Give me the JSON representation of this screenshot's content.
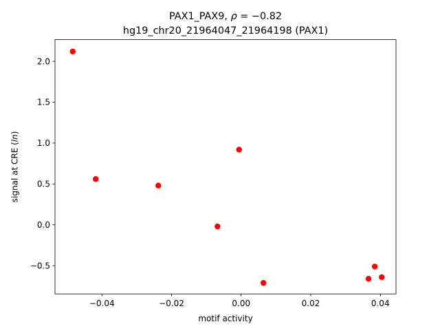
{
  "chart_data": {
    "type": "scatter",
    "title_line1": "PAX1_PAX9, ρ = −0.82",
    "title_line1_prefix": "PAX1_PAX9, ",
    "title_line1_rho": "ρ",
    "title_line1_suffix": " = −0.82",
    "title_line2": "hg19_chr20_21964047_21964198 (PAX1)",
    "xlabel": "motif activity",
    "ylabel_prefix": "signal at CRE (",
    "ylabel_italic": "ln",
    "ylabel_suffix": ")",
    "xlim": [
      -0.0535,
      0.0445
    ],
    "ylim": [
      -0.845,
      2.265
    ],
    "x_ticks": [
      {
        "value": -0.04,
        "label": "−0.04"
      },
      {
        "value": -0.02,
        "label": "−0.02"
      },
      {
        "value": 0.0,
        "label": "0.00"
      },
      {
        "value": 0.02,
        "label": "0.02"
      },
      {
        "value": 0.04,
        "label": "0.04"
      }
    ],
    "y_ticks": [
      {
        "value": -0.5,
        "label": "−0.5"
      },
      {
        "value": 0.0,
        "label": "0.0"
      },
      {
        "value": 0.5,
        "label": "0.5"
      },
      {
        "value": 1.0,
        "label": "1.0"
      },
      {
        "value": 1.5,
        "label": "1.5"
      },
      {
        "value": 2.0,
        "label": "2.0"
      }
    ],
    "series": [
      {
        "color": "#ff0000",
        "points": [
          {
            "x": -0.0484,
            "y": 2.12
          },
          {
            "x": -0.0418,
            "y": 0.56
          },
          {
            "x": -0.0238,
            "y": 0.48
          },
          {
            "x": -0.0068,
            "y": -0.02
          },
          {
            "x": -0.0006,
            "y": 0.92
          },
          {
            "x": 0.0064,
            "y": -0.71
          },
          {
            "x": 0.0366,
            "y": -0.66
          },
          {
            "x": 0.0384,
            "y": -0.51
          },
          {
            "x": 0.0404,
            "y": -0.64
          }
        ]
      }
    ],
    "grid": false,
    "legend": "none"
  }
}
